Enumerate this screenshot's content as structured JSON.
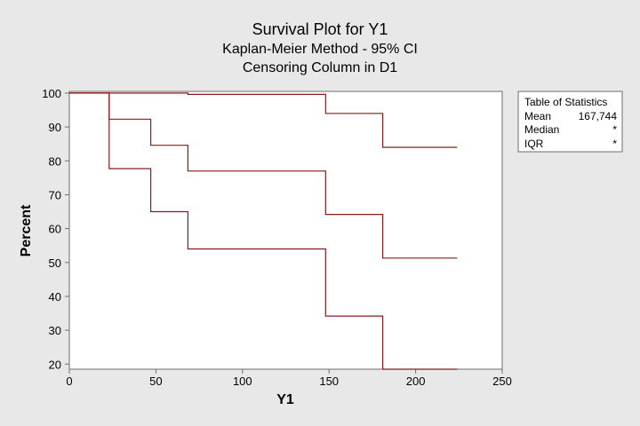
{
  "chart_data": {
    "type": "line",
    "title": "Survival Plot for Y1",
    "subtitle": "Kaplan-Meier Method - 95% CI",
    "subtitle2": "Censoring Column in D1",
    "xlabel": "Y1",
    "ylabel": "Percent",
    "xlim": [
      0,
      250
    ],
    "ylim": [
      18.5,
      100.5
    ],
    "xticks": [
      0,
      50,
      100,
      150,
      200,
      250
    ],
    "yticks": [
      20,
      30,
      40,
      50,
      60,
      70,
      80,
      90,
      100
    ],
    "grid": false,
    "series": [
      {
        "color": "#8b1a1a",
        "x": [
          0,
          23,
          23,
          68.5,
          68.5,
          148,
          148,
          181,
          181,
          224
        ],
        "y": [
          100,
          100,
          100,
          100,
          99.6,
          99.6,
          94,
          94,
          84,
          84
        ]
      },
      {
        "color": "#8b1a1a",
        "x": [
          0,
          23,
          23,
          47,
          47,
          68.5,
          68.5,
          148,
          148,
          181,
          181,
          224
        ],
        "y": [
          100,
          100,
          92.3,
          92.3,
          84.6,
          84.6,
          77,
          77,
          64.2,
          64.2,
          51.3,
          51.3
        ]
      },
      {
        "color": "#8b1a1a",
        "x": [
          0,
          23,
          23,
          47,
          47,
          68.5,
          68.5,
          148,
          148,
          181,
          181,
          224
        ],
        "y": [
          100,
          100,
          77.7,
          77.7,
          65,
          65,
          54,
          54,
          34.2,
          34.2,
          18.5,
          18.5
        ]
      }
    ]
  },
  "stats_table": {
    "title": "Table of Statistics",
    "rows": [
      {
        "label": "Mean",
        "value": "167,744"
      },
      {
        "label": "Median",
        "value": "*"
      },
      {
        "label": "IQR",
        "value": "*"
      }
    ]
  }
}
